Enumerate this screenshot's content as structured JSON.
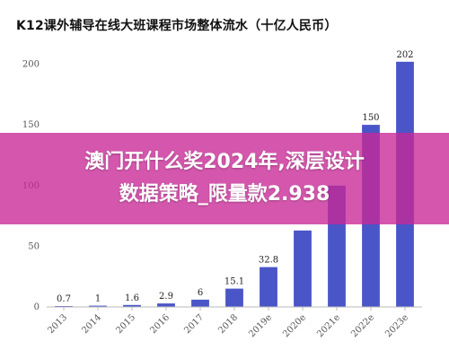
{
  "chart_data": {
    "type": "bar",
    "title": "K12课外辅导在线大班课程市场整体流水（十亿人民币）",
    "categories": [
      "2013",
      "2014",
      "2015",
      "2016",
      "2017",
      "2018",
      "2019e",
      "2020e",
      "2021e",
      "2022e",
      "2023e"
    ],
    "values": [
      0.7,
      1,
      1.6,
      2.9,
      6,
      15.1,
      32.8,
      63,
      100,
      150,
      202
    ],
    "value_labels": [
      "0.7",
      "1",
      "1.6",
      "2.9",
      "6",
      "15.1",
      "32.8",
      "",
      "",
      "150",
      "202"
    ],
    "ylim": [
      0,
      210
    ],
    "yticks": [
      0,
      50,
      100,
      150,
      200
    ],
    "grid": false,
    "bar_color": "#4a55c8"
  },
  "banner": {
    "line1": "澳门开什么奖2024年,深层设计",
    "line2": "数据策略_限量款2.938",
    "color": "#c82896"
  }
}
